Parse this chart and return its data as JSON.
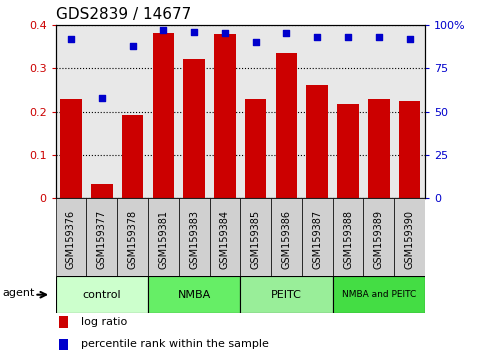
{
  "title": "GDS2839 / 14677",
  "samples": [
    "GSM159376",
    "GSM159377",
    "GSM159378",
    "GSM159381",
    "GSM159383",
    "GSM159384",
    "GSM159385",
    "GSM159386",
    "GSM159387",
    "GSM159388",
    "GSM159389",
    "GSM159390"
  ],
  "log_ratio": [
    0.228,
    0.032,
    0.193,
    0.382,
    0.32,
    0.378,
    0.228,
    0.335,
    0.26,
    0.218,
    0.228,
    0.225
  ],
  "percentile_rank": [
    92,
    58,
    88,
    97,
    96,
    95,
    90,
    95,
    93,
    93,
    93,
    92
  ],
  "bar_color": "#cc0000",
  "dot_color": "#0000cc",
  "ylim_left": [
    0,
    0.4
  ],
  "ylim_right": [
    0,
    100
  ],
  "yticks_left": [
    0,
    0.1,
    0.2,
    0.3,
    0.4
  ],
  "yticks_right": [
    0,
    25,
    50,
    75,
    100
  ],
  "ytick_labels_right": [
    "0",
    "25",
    "50",
    "75",
    "100%"
  ],
  "groups": [
    {
      "label": "control",
      "start": 0,
      "end": 3,
      "color": "#ccffcc"
    },
    {
      "label": "NMBA",
      "start": 3,
      "end": 6,
      "color": "#66ee66"
    },
    {
      "label": "PEITC",
      "start": 6,
      "end": 9,
      "color": "#99ee99"
    },
    {
      "label": "NMBA and PEITC",
      "start": 9,
      "end": 12,
      "color": "#44dd44"
    }
  ],
  "agent_label": "agent",
  "legend_bar_label": "log ratio",
  "legend_dot_label": "percentile rank within the sample",
  "title_fontsize": 11,
  "tick_fontsize": 8,
  "sample_fontsize": 7,
  "group_fontsize": 8,
  "legend_fontsize": 8,
  "chart_bg": "#e8e8e8",
  "sample_bg": "#d0d0d0"
}
